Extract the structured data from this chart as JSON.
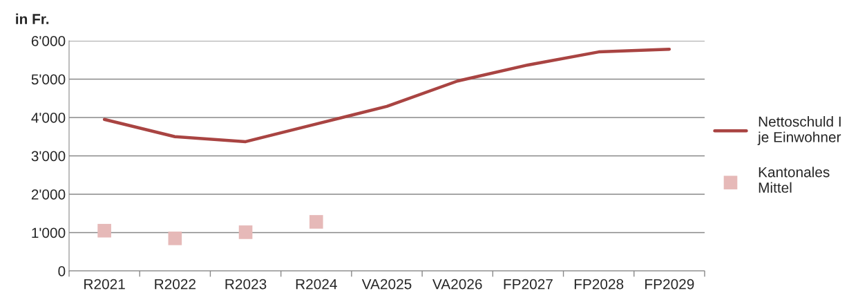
{
  "chart_data": {
    "type": "line",
    "ylabel": "in Fr.",
    "categories": [
      "R2021",
      "R2022",
      "R2023",
      "R2024",
      "VA2025",
      "VA2026",
      "FP2027",
      "FP2028",
      "FP2029"
    ],
    "series": [
      {
        "name": "Nettoschuld I\nje Einwohner",
        "color": "#a94442",
        "values": [
          3950,
          3500,
          3370,
          3830,
          4290,
          4950,
          5370,
          5710,
          5780
        ]
      },
      {
        "name": "Kantonales\nMittel",
        "type": "scatter",
        "marker": "square",
        "color": "#e6b9b8",
        "values": [
          1050,
          850,
          1010,
          1280,
          null,
          null,
          null,
          null,
          null
        ]
      }
    ],
    "ylim": [
      0,
      6000
    ],
    "yticks": [
      0,
      {
        "value": 1000,
        "label": "1'000"
      },
      {
        "value": 2000,
        "label": "2'000"
      },
      {
        "value": 3000,
        "label": "3'000"
      },
      {
        "value": 4000,
        "label": "4'000"
      },
      {
        "value": 5000,
        "label": "5'000"
      },
      {
        "value": 6000,
        "label": "6'000"
      }
    ],
    "grid": "y",
    "legend": "right"
  }
}
